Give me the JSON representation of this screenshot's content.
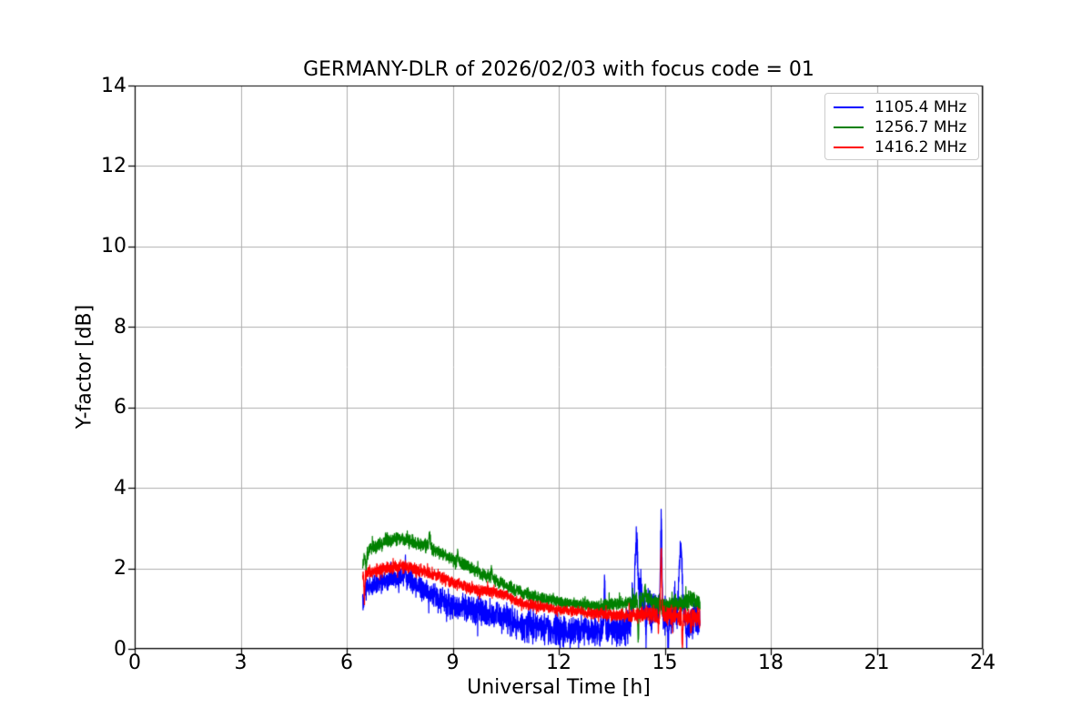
{
  "figure": {
    "title": "GERMANY-DLR of 2026/02/03 with focus code = 01",
    "background_color": "#ffffff",
    "spine_color": "#000000"
  },
  "chart_data": {
    "type": "line",
    "title": "GERMANY-DLR of 2026/02/03 with focus code = 01",
    "xlabel": "Universal Time [h]",
    "ylabel": "Y-factor [dB]",
    "xlim": [
      0,
      24
    ],
    "ylim": [
      0,
      14
    ],
    "xticks": [
      0,
      3,
      6,
      9,
      12,
      15,
      18,
      21,
      24
    ],
    "yticks": [
      0,
      2,
      4,
      6,
      8,
      10,
      12,
      14
    ],
    "grid": true,
    "grid_color": "#b0b0b0",
    "legend": {
      "position": "upper right",
      "border_color": "#cccccc",
      "entries": [
        "1105.4 MHz",
        "1256.7 MHz",
        "1416.2 MHz"
      ]
    },
    "x_unit": "hours UT",
    "data_time_span": [
      6.45,
      16.0
    ],
    "series": [
      {
        "name": "1105.4 MHz",
        "color": "#0000ff",
        "seed": 11054,
        "x_start": 6.45,
        "x_end": 16.0,
        "trend": [
          [
            6.45,
            1.35
          ],
          [
            6.6,
            1.55
          ],
          [
            7.0,
            1.68
          ],
          [
            7.4,
            1.78
          ],
          [
            7.65,
            1.8
          ],
          [
            7.9,
            1.62
          ],
          [
            8.3,
            1.4
          ],
          [
            8.7,
            1.18
          ],
          [
            9.0,
            1.05
          ],
          [
            9.5,
            0.95
          ],
          [
            10.0,
            0.88
          ],
          [
            10.5,
            0.78
          ],
          [
            11.0,
            0.6
          ],
          [
            11.5,
            0.5
          ],
          [
            12.0,
            0.45
          ],
          [
            12.5,
            0.45
          ],
          [
            13.0,
            0.45
          ],
          [
            13.5,
            0.48
          ],
          [
            13.9,
            0.52
          ],
          [
            14.05,
            0.6
          ],
          [
            14.35,
            1.0
          ],
          [
            14.55,
            1.15
          ],
          [
            14.75,
            0.95
          ],
          [
            15.0,
            0.78
          ],
          [
            15.2,
            0.72
          ],
          [
            15.7,
            0.62
          ],
          [
            16.0,
            0.68
          ]
        ],
        "noise_amp": [
          [
            6.45,
            0.18
          ],
          [
            7.5,
            0.2
          ],
          [
            9.0,
            0.26
          ],
          [
            10.5,
            0.3
          ],
          [
            12.0,
            0.3
          ],
          [
            13.5,
            0.28
          ],
          [
            14.2,
            0.35
          ],
          [
            15.0,
            0.33
          ],
          [
            16.0,
            0.28
          ]
        ],
        "spikes": [
          [
            6.47,
            -0.3,
            0.02
          ],
          [
            7.66,
            0.5,
            0.012
          ],
          [
            13.3,
            1.05,
            0.015
          ],
          [
            14.08,
            0.6,
            0.02
          ],
          [
            14.2,
            1.95,
            0.04
          ],
          [
            14.32,
            0.7,
            0.02
          ],
          [
            14.47,
            -0.7,
            0.015
          ],
          [
            14.62,
            -0.65,
            0.012
          ],
          [
            14.9,
            2.5,
            0.02
          ],
          [
            15.1,
            -0.6,
            0.015
          ],
          [
            15.28,
            0.55,
            0.022
          ],
          [
            15.45,
            1.95,
            0.045
          ],
          [
            15.62,
            -0.35,
            0.013
          ],
          [
            15.85,
            0.35,
            0.018
          ]
        ]
      },
      {
        "name": "1256.7 MHz",
        "color": "#008000",
        "seed": 12567,
        "x_start": 6.45,
        "x_end": 16.0,
        "trend": [
          [
            6.45,
            2.15
          ],
          [
            6.65,
            2.5
          ],
          [
            7.0,
            2.6
          ],
          [
            7.45,
            2.75
          ],
          [
            7.75,
            2.72
          ],
          [
            8.0,
            2.6
          ],
          [
            8.3,
            2.55
          ],
          [
            8.6,
            2.4
          ],
          [
            9.0,
            2.22
          ],
          [
            9.5,
            2.02
          ],
          [
            10.0,
            1.78
          ],
          [
            10.5,
            1.58
          ],
          [
            11.0,
            1.38
          ],
          [
            11.5,
            1.25
          ],
          [
            12.0,
            1.17
          ],
          [
            12.5,
            1.1
          ],
          [
            13.0,
            1.07
          ],
          [
            13.5,
            1.1
          ],
          [
            14.0,
            1.15
          ],
          [
            14.45,
            1.25
          ],
          [
            14.75,
            1.1
          ],
          [
            15.0,
            1.07
          ],
          [
            15.4,
            1.1
          ],
          [
            15.75,
            1.22
          ],
          [
            16.0,
            1.18
          ]
        ],
        "noise_amp": [
          [
            6.45,
            0.13
          ],
          [
            9.0,
            0.13
          ],
          [
            12.0,
            0.11
          ],
          [
            13.8,
            0.13
          ],
          [
            14.5,
            0.17
          ],
          [
            16.0,
            0.17
          ]
        ],
        "spikes": [
          [
            6.55,
            -0.35,
            0.012
          ],
          [
            7.1,
            0.18,
            0.012
          ],
          [
            8.34,
            0.35,
            0.013
          ],
          [
            9.14,
            0.3,
            0.012
          ],
          [
            10.1,
            0.3,
            0.012
          ],
          [
            14.25,
            -1.0,
            0.013
          ],
          [
            14.45,
            0.25,
            0.015
          ]
        ]
      },
      {
        "name": "1416.2 MHz",
        "color": "#ff0000",
        "seed": 14162,
        "x_start": 6.45,
        "x_end": 16.0,
        "trend": [
          [
            6.45,
            1.85
          ],
          [
            6.7,
            1.9
          ],
          [
            7.0,
            1.97
          ],
          [
            7.5,
            2.05
          ],
          [
            7.75,
            2.02
          ],
          [
            8.0,
            1.95
          ],
          [
            8.5,
            1.85
          ],
          [
            9.0,
            1.65
          ],
          [
            9.5,
            1.5
          ],
          [
            10.0,
            1.43
          ],
          [
            10.5,
            1.33
          ],
          [
            11.0,
            1.13
          ],
          [
            11.5,
            1.05
          ],
          [
            12.0,
            0.97
          ],
          [
            12.5,
            0.93
          ],
          [
            13.0,
            0.87
          ],
          [
            13.5,
            0.85
          ],
          [
            14.0,
            0.83
          ],
          [
            14.5,
            0.85
          ],
          [
            15.0,
            0.85
          ],
          [
            15.5,
            0.8
          ],
          [
            16.0,
            0.8
          ]
        ],
        "noise_amp": [
          [
            6.45,
            0.12
          ],
          [
            9.0,
            0.12
          ],
          [
            12.0,
            0.1
          ],
          [
            13.8,
            0.12
          ],
          [
            14.5,
            0.17
          ],
          [
            16.0,
            0.2
          ]
        ],
        "spikes": [
          [
            6.5,
            -0.65,
            0.012
          ],
          [
            14.82,
            -0.35,
            0.012
          ],
          [
            14.9,
            1.5,
            0.018
          ],
          [
            15.5,
            -0.72,
            0.013
          ],
          [
            15.75,
            -0.25,
            0.01
          ]
        ]
      }
    ]
  }
}
